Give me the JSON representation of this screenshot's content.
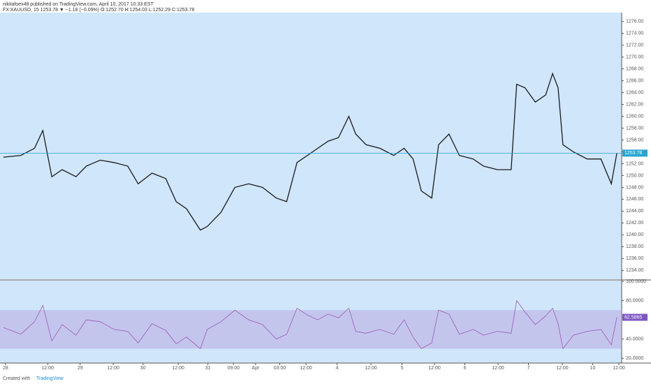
{
  "header": {
    "publisher": "nikitafoex48 published on TradingView.com, April 10, 2017 10:33 EST",
    "symbol_line": "FX:XAUUSD, 15 1253.78 ▼ −1.18 (−0.09%) O:1252.70 H:1254.03 L:1252.29 C:1253.78"
  },
  "chart_data": [
    {
      "type": "line",
      "color": "#1a1a1a",
      "x": [
        5,
        30,
        50,
        62,
        75,
        90,
        110,
        125,
        145,
        165,
        185,
        200,
        220,
        240,
        255,
        270,
        290,
        300,
        320,
        340,
        360,
        380,
        400,
        415,
        430,
        445,
        460,
        475,
        490,
        505,
        515,
        530,
        550,
        570,
        585,
        598,
        610,
        625,
        635,
        650,
        665,
        685,
        700,
        720,
        740,
        748,
        760,
        775,
        790,
        800,
        808,
        815,
        830,
        850,
        870,
        885,
        893
      ],
      "values": [
        1253.1,
        1253.4,
        1254.6,
        1257.6,
        1249.8,
        1251.0,
        1249.8,
        1251.6,
        1252.6,
        1252.2,
        1251.6,
        1248.6,
        1250.4,
        1249.5,
        1245.6,
        1244.4,
        1240.8,
        1241.4,
        1243.8,
        1248.0,
        1248.6,
        1248.0,
        1246.2,
        1245.6,
        1252.2,
        1253.4,
        1254.6,
        1255.8,
        1256.4,
        1260.0,
        1257.0,
        1255.2,
        1254.6,
        1253.4,
        1254.6,
        1252.8,
        1247.4,
        1246.2,
        1255.2,
        1257.0,
        1253.4,
        1252.8,
        1251.6,
        1251.0,
        1251.0,
        1265.4,
        1264.8,
        1262.4,
        1263.6,
        1267.2,
        1264.8,
        1255.2,
        1254.0,
        1252.8,
        1252.8,
        1248.6,
        1253.78
      ],
      "xlim": [
        0,
        900
      ],
      "xticks": [
        {
          "value": 8,
          "label": "28"
        },
        {
          "value": 69,
          "label": "12:00"
        },
        {
          "value": 116,
          "label": "29"
        },
        {
          "value": 164,
          "label": "12:00"
        },
        {
          "value": 207,
          "label": "30"
        },
        {
          "value": 258,
          "label": "12:00"
        },
        {
          "value": 301,
          "label": "31"
        },
        {
          "value": 338,
          "label": "09:00"
        },
        {
          "value": 370,
          "label": "Apr"
        },
        {
          "value": 405,
          "label": "03:00"
        },
        {
          "value": 443,
          "label": "12:00"
        },
        {
          "value": 488,
          "label": "4"
        },
        {
          "value": 537,
          "label": "12:00"
        },
        {
          "value": 582,
          "label": "5"
        },
        {
          "value": 629,
          "label": "12:00"
        },
        {
          "value": 673,
          "label": "6"
        },
        {
          "value": 721,
          "label": "12:00"
        },
        {
          "value": 765,
          "label": "7"
        },
        {
          "value": 814,
          "label": "12:00"
        },
        {
          "value": 858,
          "label": "10"
        },
        {
          "value": 896,
          "label": "12:00"
        }
      ],
      "ylim": [
        1232.5,
        1277.5
      ],
      "yticks": [
        {
          "value": 1234,
          "label": "1234.00"
        },
        {
          "value": 1236,
          "label": "1236.00"
        },
        {
          "value": 1238,
          "label": "1238.00"
        },
        {
          "value": 1240,
          "label": "1240.00"
        },
        {
          "value": 1242,
          "label": "1242.00"
        },
        {
          "value": 1244,
          "label": "1244.00"
        },
        {
          "value": 1246,
          "label": "1246.00"
        },
        {
          "value": 1248,
          "label": "1248.00"
        },
        {
          "value": 1250,
          "label": "1250.00"
        },
        {
          "value": 1252,
          "label": "1252.00"
        },
        {
          "value": 1254,
          "label": "1254.00"
        },
        {
          "value": 1256,
          "label": "1256.00"
        },
        {
          "value": 1258,
          "label": "1258.00"
        },
        {
          "value": 1260,
          "label": "1260.00"
        },
        {
          "value": 1262,
          "label": "1262.00"
        },
        {
          "value": 1264,
          "label": "1264.00"
        },
        {
          "value": 1266,
          "label": "1266.00"
        },
        {
          "value": 1268,
          "label": "1268.00"
        },
        {
          "value": 1270,
          "label": "1270.00"
        },
        {
          "value": 1272,
          "label": "1272.00"
        },
        {
          "value": 1274,
          "label": "1274.00"
        },
        {
          "value": 1276,
          "label": "1276.00"
        }
      ],
      "last_value": {
        "value": 1253.78,
        "label": "1253.78"
      }
    },
    {
      "type": "line",
      "color": "#9b59b6",
      "x": [
        5,
        30,
        50,
        62,
        75,
        90,
        110,
        125,
        145,
        165,
        185,
        200,
        220,
        240,
        255,
        270,
        290,
        300,
        320,
        340,
        360,
        380,
        400,
        415,
        430,
        445,
        460,
        475,
        490,
        505,
        515,
        530,
        550,
        570,
        585,
        598,
        610,
        625,
        635,
        650,
        665,
        685,
        700,
        720,
        740,
        748,
        760,
        775,
        790,
        800,
        808,
        815,
        830,
        850,
        870,
        885,
        893
      ],
      "values": [
        52,
        45,
        58,
        75,
        38,
        55,
        44,
        60,
        58,
        50,
        48,
        36,
        56,
        49,
        35,
        42,
        30,
        50,
        58,
        70,
        60,
        55,
        40,
        45,
        72,
        65,
        60,
        66,
        62,
        72,
        48,
        46,
        50,
        45,
        60,
        42,
        30,
        36,
        70,
        66,
        45,
        50,
        44,
        48,
        46,
        80,
        68,
        55,
        64,
        72,
        56,
        30,
        44,
        48,
        50,
        34,
        62.5865
      ],
      "ylim": [
        15,
        100
      ],
      "yticks": [
        {
          "value": 20,
          "label": "20.0000"
        },
        {
          "value": 40,
          "label": "40.0000"
        },
        {
          "value": 80,
          "label": "80.0000"
        },
        {
          "value": 100,
          "label": "100.0000"
        }
      ],
      "band": [
        30,
        70
      ],
      "last_value": {
        "value": 62.5865,
        "label": "62.5865"
      }
    }
  ],
  "footer": {
    "created": "Created with",
    "brand": "TradingView"
  }
}
